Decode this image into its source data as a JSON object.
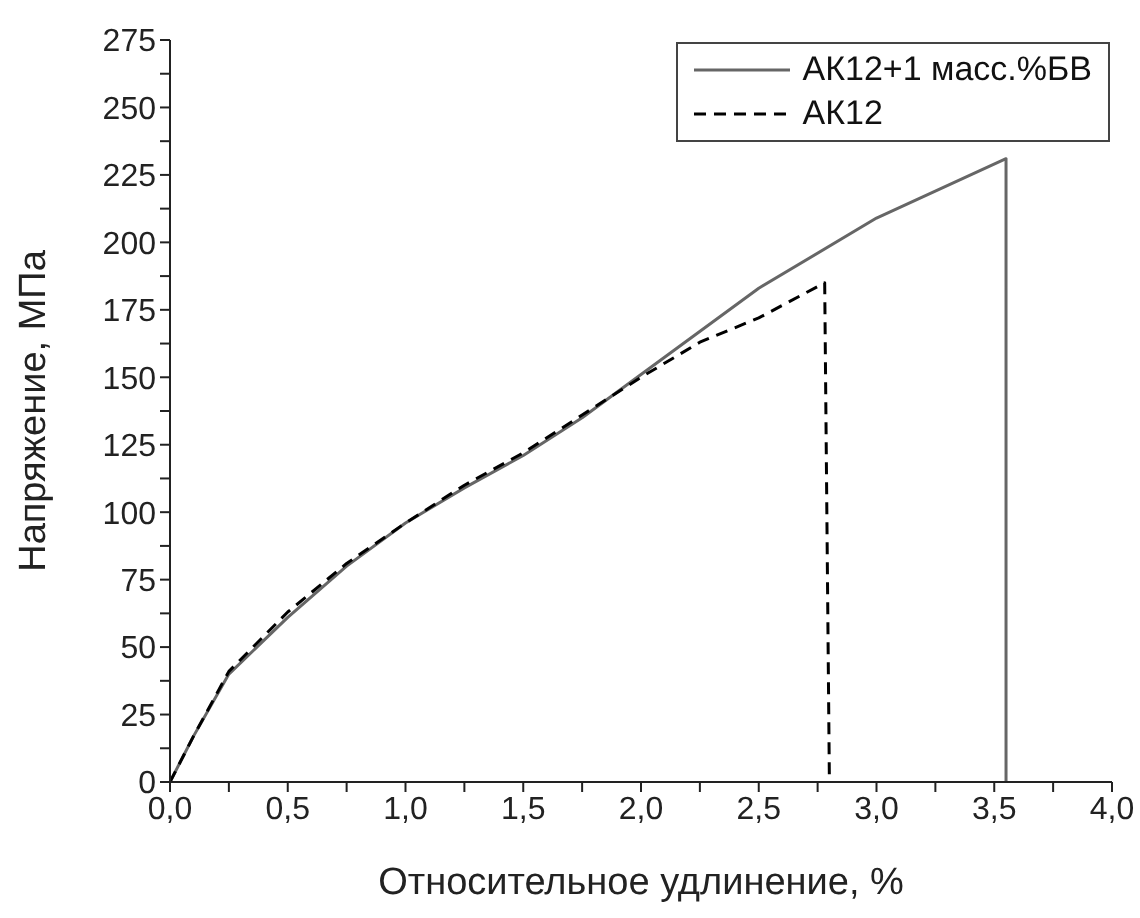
{
  "chart_data": {
    "type": "line",
    "xlabel": "Относительное удлинение, %",
    "ylabel": "Напряжение, МПа",
    "xlim": [
      0,
      4
    ],
    "ylim": [
      0,
      275
    ],
    "xticks": [
      {
        "value": 0,
        "label": "0,0"
      },
      {
        "value": 0.25,
        "label": null
      },
      {
        "value": 0.5,
        "label": "0,5"
      },
      {
        "value": 0.75,
        "label": null
      },
      {
        "value": 1,
        "label": "1,0"
      },
      {
        "value": 1.25,
        "label": null
      },
      {
        "value": 1.5,
        "label": "1,5"
      },
      {
        "value": 1.75,
        "label": null
      },
      {
        "value": 2,
        "label": "2,0"
      },
      {
        "value": 2.25,
        "label": null
      },
      {
        "value": 2.5,
        "label": "2,5"
      },
      {
        "value": 2.75,
        "label": null
      },
      {
        "value": 3,
        "label": "3,0"
      },
      {
        "value": 3.25,
        "label": null
      },
      {
        "value": 3.5,
        "label": "3,5"
      },
      {
        "value": 3.75,
        "label": null
      },
      {
        "value": 4,
        "label": "4,0"
      }
    ],
    "yticks": [
      0,
      {
        "value": 12.5,
        "label": null
      },
      25,
      {
        "value": 37.5,
        "label": null
      },
      50,
      {
        "value": 62.5,
        "label": null
      },
      75,
      {
        "value": 87.5,
        "label": null
      },
      100,
      {
        "value": 112.5,
        "label": null
      },
      125,
      {
        "value": 137.5,
        "label": null
      },
      150,
      {
        "value": 162.5,
        "label": null
      },
      175,
      {
        "value": 187.5,
        "label": null
      },
      200,
      {
        "value": 212.5,
        "label": null
      },
      225,
      {
        "value": 237.5,
        "label": null
      },
      250,
      {
        "value": 262.5,
        "label": null
      },
      275
    ],
    "grid": false,
    "legend": "top right",
    "marker": "none",
    "series": [
      {
        "name": "АК12+1 масс.%БВ",
        "color": "#666666",
        "line_style": "solid",
        "x": [
          0,
          0.1,
          0.25,
          0.5,
          0.75,
          1,
          1.25,
          1.5,
          1.75,
          2,
          2.5,
          3,
          3.55,
          3.55
        ],
        "values": [
          0,
          17,
          40,
          61,
          80,
          96,
          109,
          121,
          135,
          151,
          183,
          209,
          231,
          0
        ]
      },
      {
        "name": "АК12",
        "color": "#000000",
        "line_style": "dashed",
        "x": [
          0,
          0.1,
          0.25,
          0.5,
          0.75,
          1,
          1.25,
          1.5,
          1.75,
          2,
          2.25,
          2.5,
          2.78,
          2.8
        ],
        "values": [
          0,
          17,
          41,
          63,
          81,
          96,
          110,
          122,
          136,
          150,
          163,
          172,
          185,
          0
        ]
      }
    ]
  }
}
